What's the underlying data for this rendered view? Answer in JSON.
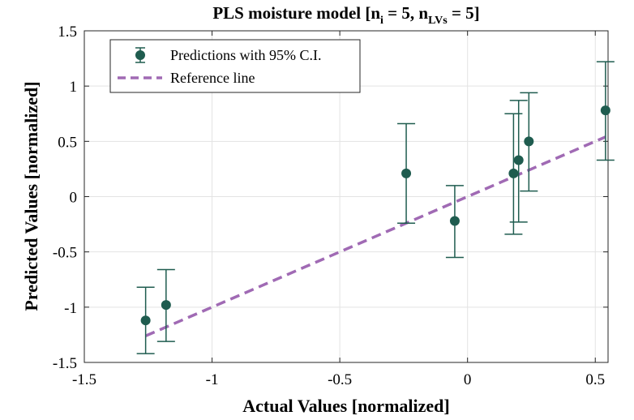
{
  "chart_data": {
    "type": "scatter",
    "title": {
      "main": "PLS moisture model [n",
      "sub1": "i",
      "mid": " = 5, n",
      "sub2": "LVs",
      "end": " = 5]"
    },
    "xlabel": "Actual Values [normalized]",
    "ylabel": "Predicted Values [normalized]",
    "xlim": [
      -1.5,
      0.55
    ],
    "ylim": [
      -1.5,
      1.5
    ],
    "xticks": [
      -1.5,
      -1,
      -0.5,
      0,
      0.5
    ],
    "xtick_labels": [
      "-1.5",
      "-1",
      "-0.5",
      "0",
      "0.5"
    ],
    "yticks": [
      -1.5,
      -1,
      -0.5,
      0,
      0.5,
      1,
      1.5
    ],
    "ytick_labels": [
      "-1.5",
      "-1",
      "-0.5",
      "0",
      "0.5",
      "1",
      "1.5"
    ],
    "grid": true,
    "legend_position": "top-left",
    "series": [
      {
        "name": "Predictions with 95% C.I.",
        "kind": "errorbar",
        "color": "#1f5c4f",
        "points": [
          {
            "x": -1.26,
            "y": -1.12,
            "lo": -1.42,
            "hi": -0.82
          },
          {
            "x": -1.18,
            "y": -0.98,
            "lo": -1.31,
            "hi": -0.66
          },
          {
            "x": -0.24,
            "y": 0.21,
            "lo": -0.24,
            "hi": 0.66
          },
          {
            "x": -0.05,
            "y": -0.22,
            "lo": -0.55,
            "hi": 0.1
          },
          {
            "x": 0.18,
            "y": 0.21,
            "lo": -0.34,
            "hi": 0.75
          },
          {
            "x": 0.2,
            "y": 0.33,
            "lo": -0.23,
            "hi": 0.87
          },
          {
            "x": 0.24,
            "y": 0.5,
            "lo": 0.05,
            "hi": 0.94
          },
          {
            "x": 0.54,
            "y": 0.78,
            "lo": 0.33,
            "hi": 1.22
          }
        ]
      },
      {
        "name": "Reference line",
        "kind": "line",
        "color": "#a06ab4",
        "x": [
          -1.26,
          0.54
        ],
        "y": [
          -1.26,
          0.54
        ]
      }
    ]
  }
}
